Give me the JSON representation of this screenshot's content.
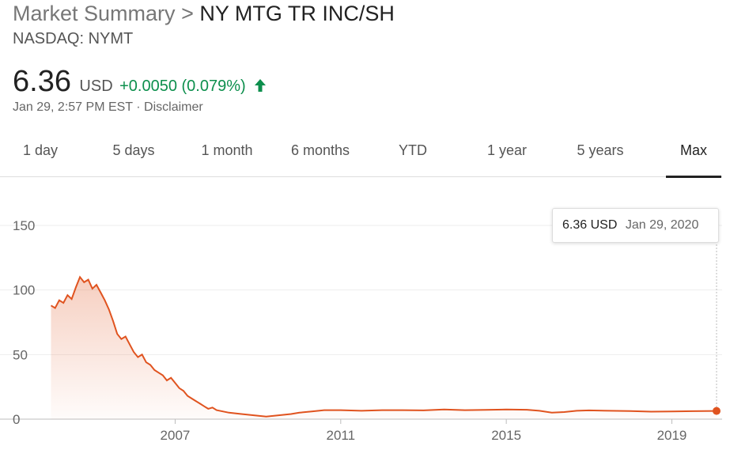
{
  "header": {
    "breadcrumb_root": "Market Summary",
    "separator": ">",
    "company": "NY MTG TR INC/SH",
    "exchange_ticker": "NASDAQ: NYMT"
  },
  "quote": {
    "price": "6.36",
    "currency": "USD",
    "change": "+0.0050 (0.079%)",
    "timestamp": "Jan 29, 2:57 PM EST",
    "dot": "·",
    "disclaimer": "Disclaimer",
    "up_color": "#0d8f4d"
  },
  "tabs": [
    {
      "label": "1 day",
      "active": false
    },
    {
      "label": "5 days",
      "active": false
    },
    {
      "label": "1 month",
      "active": false
    },
    {
      "label": "6 months",
      "active": false
    },
    {
      "label": "YTD",
      "active": false
    },
    {
      "label": "1 year",
      "active": false
    },
    {
      "label": "5 years",
      "active": false
    },
    {
      "label": "Max",
      "active": true
    }
  ],
  "tooltip": {
    "price": "6.36 USD",
    "date": "Jan 29, 2020"
  },
  "chart_data": {
    "type": "area",
    "line_color": "#e0531f",
    "xlim": [
      2003.8,
      2020.08
    ],
    "ylim": [
      0,
      150
    ],
    "y_ticks": [
      "0",
      "50",
      "100",
      "150"
    ],
    "y_tick_values": [
      0,
      50,
      100,
      150
    ],
    "x_ticks": [
      "2007",
      "2011",
      "2015",
      "2019"
    ],
    "x_tick_values": [
      2007,
      2011,
      2015,
      2019
    ],
    "grid": true,
    "series": [
      {
        "x": [
          2004.0,
          2004.1,
          2004.2,
          2004.3,
          2004.4,
          2004.5,
          2004.6,
          2004.7,
          2004.8,
          2004.9,
          2005.0,
          2005.1,
          2005.2,
          2005.3,
          2005.4,
          2005.5,
          2005.6,
          2005.7,
          2005.8,
          2005.9,
          2006.0,
          2006.1,
          2006.2,
          2006.3,
          2006.4,
          2006.5,
          2006.6,
          2006.7,
          2006.8,
          2006.9,
          2007.0,
          2007.1,
          2007.2,
          2007.3,
          2007.4,
          2007.5,
          2007.6,
          2007.7,
          2007.8,
          2007.9,
          2008.0,
          2008.3,
          2008.6,
          2008.9,
          2009.2,
          2009.5,
          2009.8,
          2010.0,
          2010.3,
          2010.6,
          2011.0,
          2011.5,
          2012.0,
          2012.5,
          2013.0,
          2013.5,
          2014.0,
          2014.5,
          2015.0,
          2015.5,
          2015.8,
          2016.1,
          2016.4,
          2016.7,
          2017.0,
          2017.5,
          2018.0,
          2018.5,
          2019.0,
          2019.5,
          2020.08
        ],
        "values": [
          88,
          86,
          92,
          90,
          96,
          93,
          102,
          110,
          106,
          108,
          101,
          104,
          98,
          92,
          85,
          76,
          66,
          62,
          64,
          58,
          52,
          48,
          50,
          44,
          42,
          38,
          36,
          34,
          30,
          32,
          28,
          24,
          22,
          18,
          16,
          14,
          12,
          10,
          8,
          9,
          7,
          5,
          4,
          3,
          2,
          3,
          4,
          5,
          6,
          7,
          7,
          6.5,
          7,
          7,
          6.8,
          7.5,
          7,
          7.2,
          7.5,
          7.3,
          6.5,
          5,
          5.5,
          6.5,
          6.8,
          6.5,
          6.3,
          5.8,
          6,
          6.2,
          6.36
        ]
      }
    ]
  }
}
